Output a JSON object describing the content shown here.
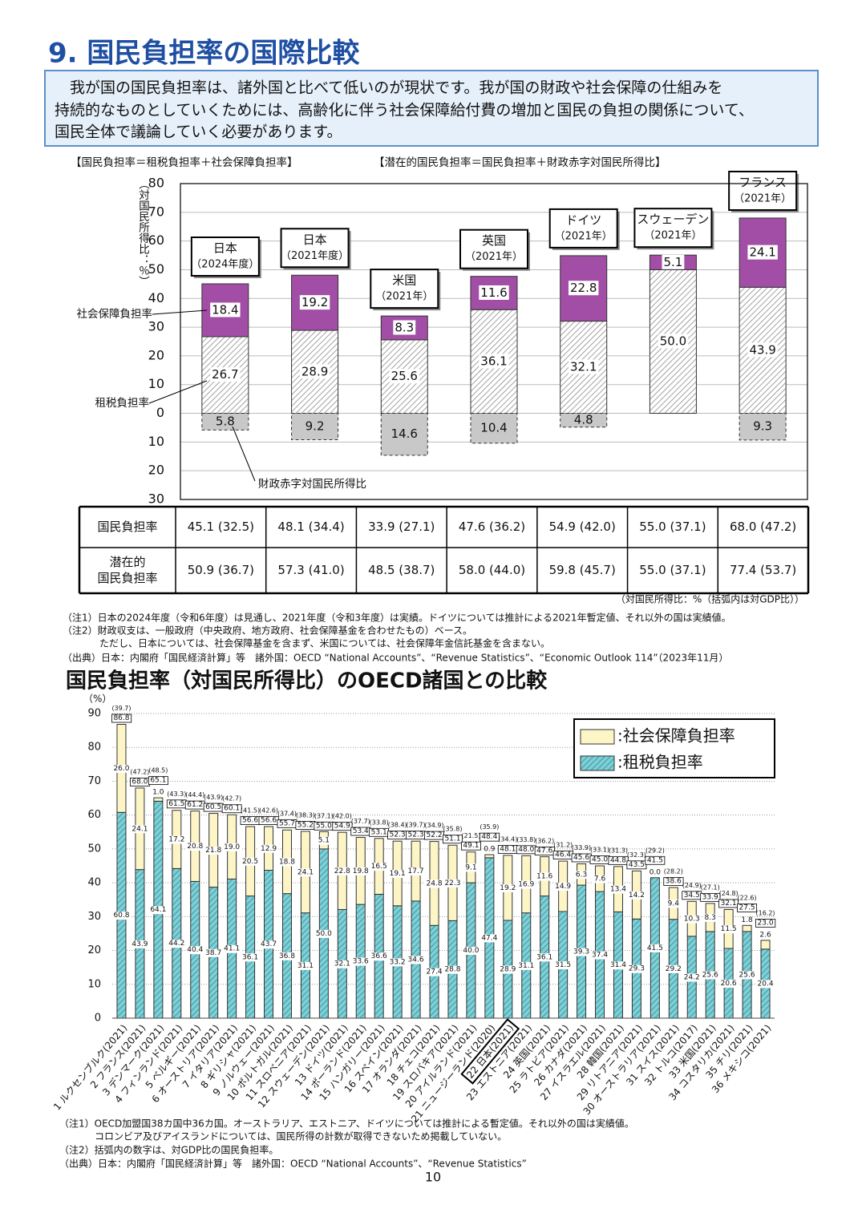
{
  "title": "9. 国民負担率の国際比較",
  "intro": [
    "　我が国の国民負担率は、諸外国と比べて低いのが現状です。我が国の財政や社会保障の仕組みを",
    "持続的なものとしていくためには、高齢化に伴う社会保障給付費の増加と国民の負担の関係について、",
    "国民全体で議論していく必要があります。"
  ],
  "formulas": [
    "【国民負担率＝租税負担率＋社会保障負担率】",
    "【潜在的国民負担率＝国民負担率＋財政赤字対国民所得比】"
  ],
  "chart_data": [
    {
      "type": "bar",
      "stacked": true,
      "y_label": "（対国民所得比：％）",
      "categories": [
        "日本",
        "日本",
        "米国",
        "英国",
        "ドイツ",
        "スウェーデン",
        "フランス"
      ],
      "category_years": [
        "（2024年度）",
        "（2021年度）",
        "（2021年）",
        "（2021年）",
        "（2021年）",
        "（2021年）",
        "（2021年）"
      ],
      "series": [
        {
          "name": "租税負担率",
          "color": "#ffffff",
          "hatch": "#8a8a8a",
          "values": [
            26.7,
            28.9,
            25.6,
            36.1,
            32.1,
            50.0,
            43.9
          ],
          "value_labels": [
            "26.7",
            "28.9",
            "25.6",
            "36.1",
            "32.1",
            "50.0",
            "43.9"
          ]
        },
        {
          "name": "社会保障負担率",
          "color": "#a24ea6",
          "values": [
            18.4,
            19.2,
            8.3,
            11.6,
            22.8,
            5.1,
            24.1
          ],
          "value_labels": [
            "18.4",
            "19.2",
            "8.3",
            "11.6",
            "22.8",
            "5.1",
            "24.1"
          ]
        },
        {
          "name": "財政赤字対国民所得比",
          "color": "#c8c8c8",
          "dashed": true,
          "values": [
            -5.8,
            -9.2,
            -14.6,
            -10.4,
            -4.8,
            null,
            -9.3
          ],
          "value_labels": [
            "5.8",
            "9.2",
            "14.6",
            "10.4",
            "4.8",
            null,
            "9.3"
          ]
        }
      ],
      "ylim": [
        -30,
        80
      ],
      "yticks": [
        {
          "value": -30,
          "label": "30"
        },
        {
          "value": -20,
          "label": "20"
        },
        {
          "value": -10,
          "label": "10"
        },
        0,
        10,
        20,
        30,
        40,
        50,
        60,
        70,
        80
      ],
      "grid": true
    },
    {
      "type": "bar",
      "stacked": true,
      "title": "国民負担率（対国民所得比）のOECD諸国との比較",
      "y_label": "（%）",
      "categories": [
        "1 ルクセンブルク(2021)",
        "2 フランス(2021)",
        "3 デンマーク(2021)",
        "4 フィンランド(2021)",
        "5 ベルギー(2021)",
        "6 オーストリア(2021)",
        "7 イタリア(2021)",
        "8 ギリシャ(2021)",
        "9 ノルウェー(2021)",
        "10 ポルトガル(2021)",
        "11 スロベニア(2021)",
        "12 スウェーデン(2021)",
        "13 ドイツ(2021)",
        "14 ポーランド(2021)",
        "15 ハンガリー(2021)",
        "16 スペイン(2021)",
        "17 オランダ(2021)",
        "18 チェコ(2021)",
        "19 スロバキア(2021)",
        "20 アイルランド(2021)",
        "21 ニュージーランド(2020)",
        "22 日本(2021)",
        "23 エストニア(2021)",
        "24 英国(2021)",
        "25 ラトビア(2021)",
        "26 カナダ(2021)",
        "27 イスラエル(2021)",
        "28 韓国(2021)",
        "29 リトアニア(2021)",
        "30 オーストラリア(2021)",
        "31 スイス(2021)",
        "32 トルコ(2017)",
        "33 米国(2021)",
        "34 コスタリカ(2021)",
        "35 チリ(2021)",
        "36 メキシコ(2021)"
      ],
      "series": [
        {
          "name": "租税負担率",
          "color": "#7ecfd6",
          "hatch": "#2b8c96",
          "legend_label": ":租税負担率",
          "values": [
            60.8,
            43.9,
            64.1,
            44.2,
            40.4,
            38.7,
            41.1,
            36.1,
            43.7,
            36.8,
            31.1,
            50.0,
            32.1,
            33.6,
            36.6,
            33.2,
            34.6,
            27.4,
            28.8,
            40.0,
            47.4,
            28.9,
            31.1,
            36.1,
            31.5,
            39.3,
            37.4,
            31.4,
            29.3,
            41.5,
            29.2,
            24.2,
            25.6,
            20.6,
            25.6,
            20.4
          ],
          "value_labels": [
            "60.8",
            "43.9",
            "64.1",
            "44.2",
            "40.4",
            "38.7",
            "41.1",
            "36.1",
            "43.7",
            "36.8",
            "31.1",
            "50.0",
            "32.1",
            "33.6",
            "36.6",
            "33.2",
            "34.6",
            "27.4",
            "28.8",
            "40.0",
            "47.4",
            "28.9",
            "31.1",
            "36.1",
            "31.5",
            "39.3",
            "37.4",
            "31.4",
            "29.3",
            "41.5",
            "29.2",
            "24.2",
            "25.6",
            "20.6",
            "25.6",
            "20.4"
          ]
        },
        {
          "name": "社会保障負担率",
          "color": "#fdf5c6",
          "legend_label": ":社会保障負担率",
          "values": [
            26.0,
            24.1,
            1.0,
            17.2,
            20.8,
            21.8,
            19.0,
            20.5,
            12.9,
            18.8,
            24.1,
            5.1,
            22.8,
            19.8,
            16.5,
            19.1,
            17.7,
            24.8,
            22.3,
            9.1,
            0.9,
            19.2,
            16.9,
            11.6,
            14.9,
            6.3,
            7.6,
            13.4,
            14.2,
            0.0,
            9.4,
            10.3,
            8.3,
            11.5,
            1.8,
            2.6
          ],
          "value_labels": [
            "26.0",
            "24.1",
            "1.0",
            "17.2",
            "20.8",
            "21.8",
            "19.0",
            "20.5",
            "12.9",
            "18.8",
            "24.1",
            "5.1",
            "22.8",
            "19.8",
            "16.5",
            "19.1",
            "17.7",
            "24.8",
            "22.3",
            "9.1",
            "0.9",
            "19.2",
            "16.9",
            "11.6",
            "14.9",
            "6.3",
            "7.6",
            "13.4",
            "14.2",
            "0.0",
            "9.4",
            "10.3",
            "8.3",
            "11.5",
            "1.8",
            "2.6"
          ]
        }
      ],
      "totals": [
        86.8,
        68.0,
        65.1,
        61.5,
        61.2,
        60.5,
        60.1,
        56.6,
        56.6,
        55.7,
        55.2,
        55.0,
        54.9,
        53.4,
        53.1,
        52.3,
        52.3,
        52.2,
        51.1,
        49.1,
        48.4,
        48.1,
        48.0,
        47.6,
        46.4,
        45.6,
        45.0,
        44.8,
        43.5,
        41.5,
        38.6,
        34.5,
        33.9,
        32.1,
        27.5,
        23.0
      ],
      "totals_labels": [
        "86.8",
        "68.0",
        "65.1",
        "61.5",
        "61.2",
        "60.5",
        "60.1",
        "56.6",
        "56.6",
        "55.7",
        "55.2",
        "55.0",
        "54.9",
        "53.4",
        "53.1",
        "52.3",
        "52.3",
        "52.2",
        "51.1",
        "49.1",
        "48.4",
        "48.1",
        "48.0",
        "47.6",
        "46.4",
        "45.6",
        "45.0",
        "44.8",
        "43.5",
        "41.5",
        "38.6",
        "34.5",
        "33.9",
        "32.1",
        "27.5",
        "23.0"
      ],
      "gdp_ratio_labels": [
        "(39.7)",
        "(47.2)",
        "(48.5)",
        "(43.3)",
        "(44.4)",
        "(43.9)",
        "(42.7)",
        "(41.5)",
        "(42.6)",
        "(37.4)",
        "(38.3)",
        "(37.1)",
        "(42.0)",
        "(37.7)",
        "(33.8)",
        "(38.4)",
        "(39.7)",
        "(34.9)",
        "(35.8)",
        "(21.5)",
        "(35.9)",
        "(34.4)",
        "(33.8)",
        "(36.2)",
        "(31.2)",
        "(33.9)",
        "(33.1)",
        "(31.3)",
        "(32.3)",
        "(29.2)",
        "(28.2)",
        "(24.9)",
        "(27.1)",
        "(24.8)",
        "(22.6)",
        "(16.2)"
      ],
      "ylim": [
        0,
        90
      ],
      "yticks": [
        0,
        10,
        20,
        30,
        40,
        50,
        60,
        70,
        80,
        90
      ],
      "grid": true,
      "legend": "upper right"
    }
  ],
  "table": {
    "rows": [
      {
        "label": [
          "国民負担率"
        ],
        "cells": [
          "45.1 (32.5)",
          "48.1 (34.4)",
          "33.9 (27.1)",
          "47.6 (36.2)",
          "54.9 (42.0)",
          "55.0 (37.1)",
          "68.0 (47.2)"
        ]
      },
      {
        "label": [
          "潜在的",
          "国民負担率"
        ],
        "cells": [
          "50.9 (36.7)",
          "57.3 (41.0)",
          "48.5 (38.7)",
          "58.0 (44.0)",
          "59.8 (45.7)",
          "55.0 (37.1)",
          "77.4 (53.7)"
        ]
      }
    ],
    "unit_note": "（対国民所得比：%（括弧内は対GDP比））"
  },
  "notes1": [
    "（注1）日本の2024年度（令和6年度）は見通し、2021年度（令和3年度）は実績。ドイツについては推計による2021年暫定値、それ以外の国は実績値。",
    "（注2）財政収支は、一般政府（中央政府、地方政府、社会保障基金を合わせたもの）ベース。",
    "ただし、日本については、社会保障基金を含まず、米国については、社会保障年金信託基金を含まない。",
    "（出典）日本：内閣府「国民経済計算」等　諸外国：OECD “National Accounts”、“Revenue Statistics”、“Economic Outlook 114”（2023年11月）"
  ],
  "notes2": [
    "（注1）OECD加盟国38カ国中36カ国。オーストラリア、エストニア、ドイツについては推計による暫定値。それ以外の国は実績値。",
    "コロンビア及びアイスランドについては、国民所得の計数が取得できないため掲載していない。",
    "（注2）括弧内の数字は、対GDP比の国民負担率。",
    "（出典）日本：内閣府「国民経済計算」等　諸外国：OECD “National Accounts”、“Revenue Statistics”"
  ],
  "page_number": "10"
}
